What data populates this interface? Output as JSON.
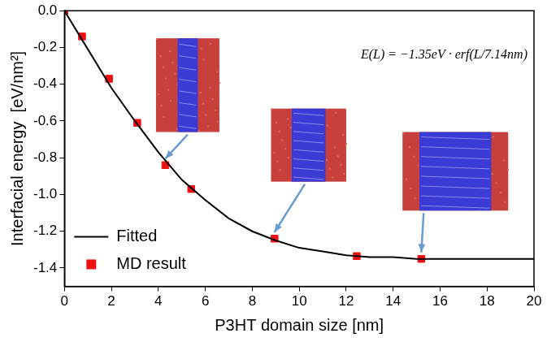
{
  "chart_data": {
    "type": "scatter",
    "x_label": "P3HT domain size [nm]",
    "y_label": "Interfacial energy  [eV/nm²]",
    "annotation": "E(L) = −1.35eV · erf(L/7.14nm)",
    "xlim": [
      0,
      20
    ],
    "xticks": [
      0,
      2,
      4,
      6,
      8,
      10,
      12,
      14,
      16,
      18,
      20
    ],
    "ylim": [
      -1.5,
      0
    ],
    "yticks": [
      {
        "value": 0,
        "label": "0.0"
      },
      -0.2,
      -0.4,
      -0.6,
      -0.8,
      {
        "value": -1,
        "label": "-1.0"
      },
      -1.2,
      -1.4
    ],
    "grid": false,
    "legend": "lower left",
    "series": [
      {
        "name": "Fitted",
        "type": "line",
        "color": "#000000",
        "line_style": "solid",
        "x": [
          0,
          1,
          2,
          3,
          4,
          5,
          6,
          7,
          8,
          9,
          10,
          11,
          12,
          13,
          14,
          15,
          16,
          17,
          18,
          19,
          20
        ],
        "values": [
          0,
          -0.21,
          -0.42,
          -0.6,
          -0.77,
          -0.92,
          -1.03,
          -1.13,
          -1.2,
          -1.25,
          -1.29,
          -1.31,
          -1.33,
          -1.34,
          -1.34,
          -1.35,
          -1.35,
          -1.35,
          -1.35,
          -1.35,
          -1.35
        ]
      },
      {
        "name": "MD result",
        "type": "scatter",
        "color": "#ee1111",
        "marker": "square",
        "x": [
          0,
          0.75,
          1.9,
          3.1,
          4.3,
          5.4,
          8.95,
          12.45,
          15.2
        ],
        "values": [
          0,
          -0.14,
          -0.37,
          -0.61,
          -0.84,
          -0.97,
          -1.24,
          -1.335,
          -1.35
        ]
      }
    ]
  }
}
